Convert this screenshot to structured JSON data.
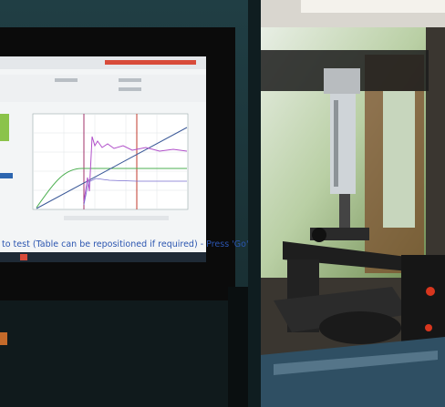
{
  "screen": {
    "status_line": "to test (Table can be repositioned if required) - Press 'Go'"
  }
}
